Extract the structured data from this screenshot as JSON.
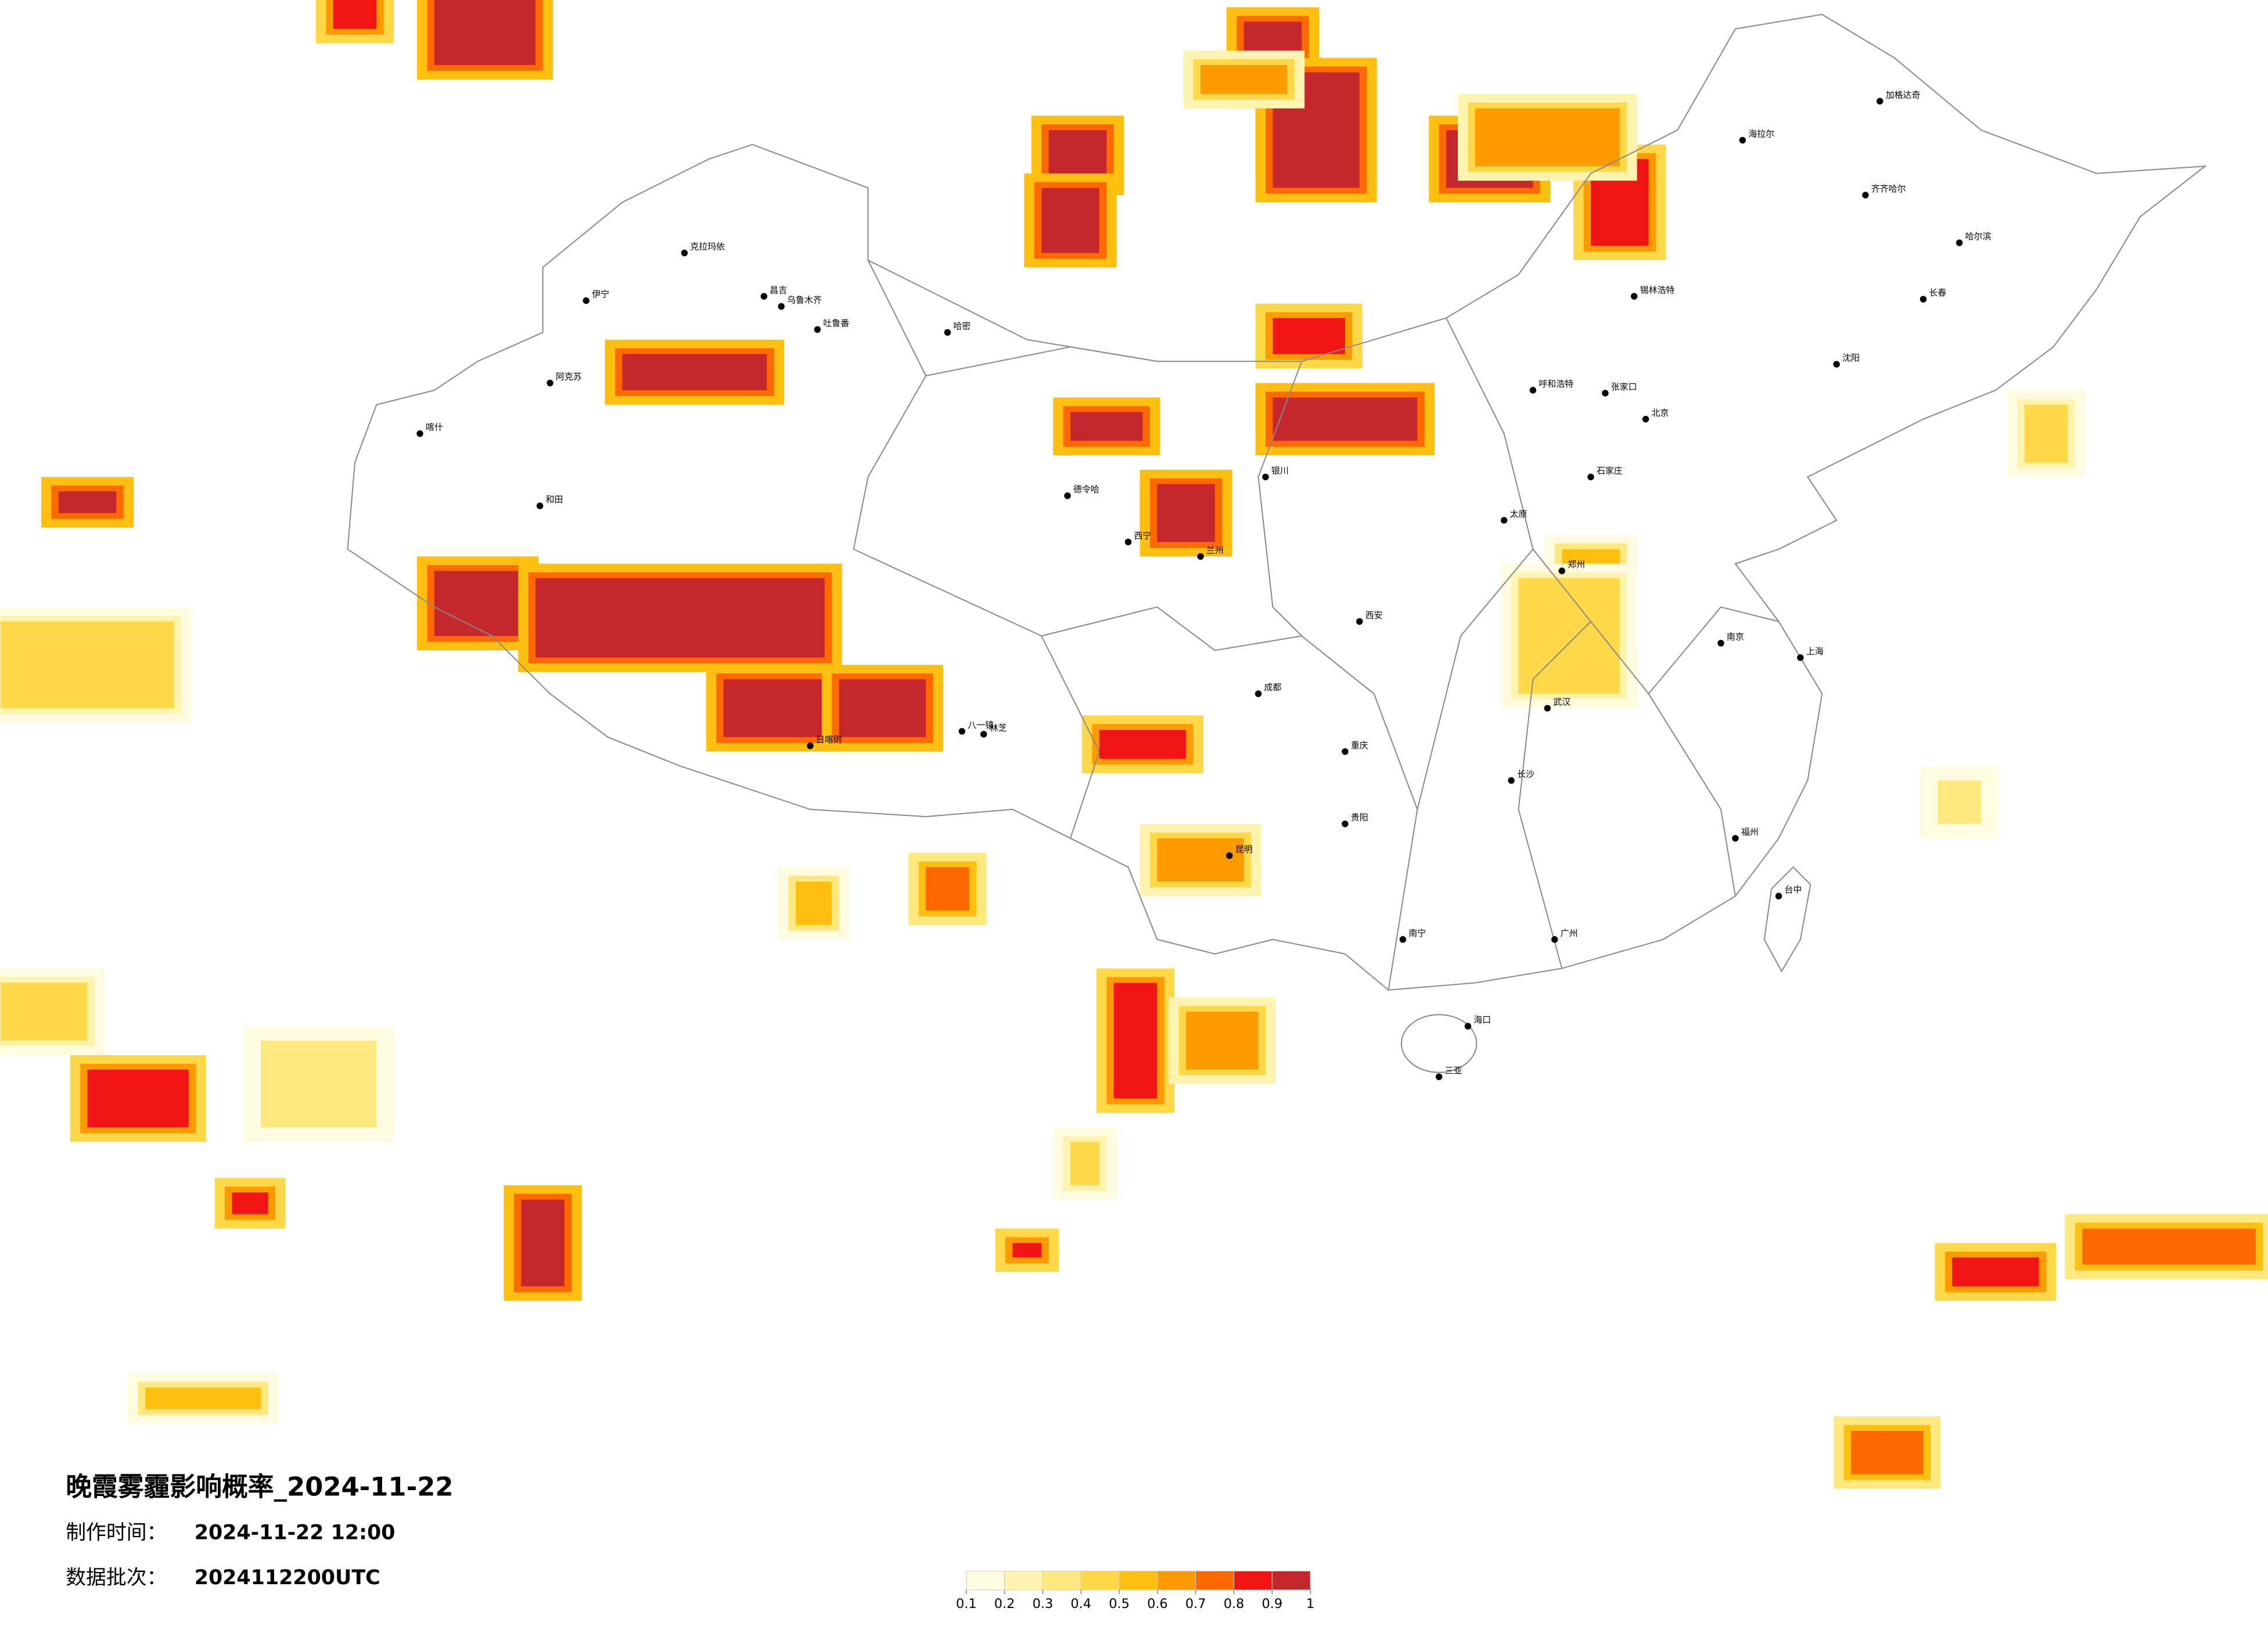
{
  "title": "晚霞雾霾影响概率_2024-11-22",
  "production_time": {
    "label": "制作时间：",
    "value": "2024-11-22 12:00"
  },
  "data_batch": {
    "label": "数据批次：",
    "value": "2024112200UTC"
  },
  "colorbar": {
    "ticks": [
      0.1,
      0.2,
      0.3,
      0.4,
      0.5,
      0.6,
      0.7,
      0.8,
      0.9,
      1
    ],
    "colors": [
      "#fffbe0",
      "#fff3b0",
      "#ffe880",
      "#ffd84a",
      "#ffbf10",
      "#ff9a00",
      "#ff6a00",
      "#f01414",
      "#c4282c"
    ]
  },
  "cities": [
    "克拉玛依",
    "伊宁",
    "昌吉",
    "乌鲁木齐",
    "吐鲁番",
    "哈密",
    "阿克苏",
    "喀什",
    "和田",
    "德令哈",
    "日喀则",
    "八一镇",
    "林芝",
    "海拉尔",
    "加格达奇",
    "齐齐哈尔",
    "哈尔滨",
    "长春",
    "沈阳",
    "锡林浩特",
    "呼和浩特",
    "张家口",
    "北京",
    "石家庄",
    "太原",
    "西安",
    "郑州",
    "成都",
    "重庆",
    "贵阳",
    "昆明",
    "南宁",
    "广州",
    "长沙",
    "武汉",
    "南京",
    "上海",
    "福州",
    "台中",
    "海口",
    "三亚",
    "兰州",
    "西宁",
    "银川"
  ]
}
